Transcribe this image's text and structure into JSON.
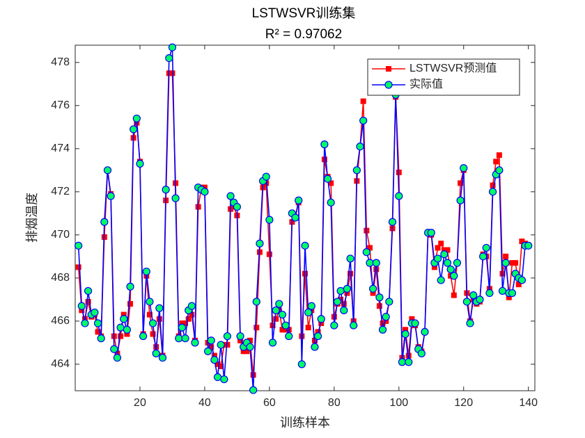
{
  "chart_data": {
    "type": "line",
    "title": "LSTWSVR训练集",
    "subtitle": "R² = 0.97062",
    "xlabel": "训练样本",
    "ylabel": "排烟温度",
    "legend": "upper right",
    "x": [
      1,
      2,
      3,
      4,
      5,
      6,
      7,
      8,
      9,
      10,
      11,
      12,
      13,
      14,
      15,
      16,
      17,
      18,
      19,
      20,
      21,
      22,
      23,
      24,
      25,
      26,
      27,
      28,
      29,
      30,
      31,
      32,
      33,
      34,
      35,
      36,
      37,
      38,
      39,
      40,
      41,
      42,
      43,
      44,
      45,
      46,
      47,
      48,
      49,
      50,
      51,
      52,
      53,
      54,
      55,
      56,
      57,
      58,
      59,
      60,
      61,
      62,
      63,
      64,
      65,
      66,
      67,
      68,
      69,
      70,
      71,
      72,
      73,
      74,
      75,
      76,
      77,
      78,
      79,
      80,
      81,
      82,
      83,
      84,
      85,
      86,
      87,
      88,
      89,
      90,
      91,
      92,
      93,
      94,
      95,
      96,
      97,
      98,
      99,
      100,
      101,
      102,
      103,
      104,
      105,
      106,
      107,
      108,
      109,
      110,
      111,
      112,
      113,
      114,
      115,
      116,
      117,
      118,
      119,
      120,
      121,
      122,
      123,
      124,
      125,
      126,
      127,
      128,
      129,
      130,
      131,
      132,
      133,
      134,
      135,
      136,
      137,
      138,
      139,
      140
    ],
    "series": [
      {
        "name": "LSTWSVR预测值",
        "color": "#ff0000",
        "marker": "square",
        "values": [
          468.5,
          466.5,
          466.1,
          466.9,
          466.2,
          466.3,
          465.5,
          465.3,
          469.9,
          473.0,
          471.9,
          465.3,
          464.5,
          465.3,
          466.3,
          465.4,
          466.8,
          474.5,
          475.2,
          473.4,
          465.4,
          468.1,
          466.3,
          465.4,
          464.8,
          466.1,
          464.4,
          471.6,
          477.5,
          477.5,
          472.4,
          465.3,
          465.9,
          465.9,
          466.1,
          466.3,
          465.1,
          471.3,
          472.2,
          472.2,
          465.0,
          464.8,
          464.4,
          464.0,
          463.9,
          464.9,
          464.9,
          471.2,
          471.3,
          470.9,
          465.1,
          464.6,
          464.6,
          465.1,
          463.5,
          465.7,
          469.2,
          472.2,
          472.4,
          469.1,
          465.8,
          466.1,
          466.5,
          465.6,
          465.6,
          465.6,
          470.6,
          470.8,
          471.5,
          465.3,
          468.2,
          465.7,
          466.5,
          465.1,
          465.5,
          465.9,
          473.5,
          472.7,
          472.4,
          466.2,
          466.8,
          467.0,
          466.8,
          467.3,
          468.2,
          466.0,
          472.5,
          474.1,
          476.2,
          470.2,
          469.4,
          467.3,
          468.4,
          466.7,
          465.9,
          466.0,
          466.9,
          470.3,
          476.4,
          472.9,
          464.3,
          465.6,
          464.4,
          466.1,
          465.8,
          464.8,
          464.6,
          465.5,
          470.1,
          470.0,
          468.5,
          469.4,
          469.6,
          469.3,
          469.3,
          468.1,
          467.2,
          468.7,
          472.4,
          473.0,
          467.3,
          466.0,
          467.0,
          466.8,
          466.9,
          469.1,
          469.0,
          467.5,
          472.3,
          473.4,
          473.7,
          468.2,
          469.0,
          467.1,
          468.7,
          468.7,
          467.7,
          469.7,
          469.6,
          469.5
        ]
      },
      {
        "name": "实际值",
        "color": "#0000ff",
        "marker_color": "#00ff66",
        "marker": "circle",
        "values": [
          469.5,
          466.7,
          465.9,
          467.4,
          466.3,
          466.4,
          465.9,
          465.2,
          470.6,
          473.0,
          471.8,
          464.7,
          464.3,
          465.7,
          466.1,
          465.6,
          467.6,
          474.9,
          475.4,
          473.3,
          465.3,
          468.3,
          466.9,
          465.9,
          464.5,
          466.6,
          464.3,
          472.1,
          478.2,
          478.7,
          471.7,
          465.2,
          465.7,
          465.2,
          466.5,
          466.7,
          465.0,
          472.2,
          472.1,
          472.0,
          464.6,
          465.1,
          464.2,
          463.4,
          464.9,
          463.3,
          465.3,
          471.8,
          471.5,
          471.3,
          465.3,
          464.8,
          465.0,
          464.8,
          462.8,
          466.9,
          469.6,
          472.5,
          472.7,
          470.7,
          465.0,
          466.5,
          466.8,
          466.3,
          465.8,
          465.3,
          471.0,
          470.8,
          471.6,
          464.0,
          469.5,
          466.4,
          466.7,
          464.8,
          465.3,
          466.1,
          474.2,
          472.6,
          471.5,
          465.8,
          466.9,
          467.4,
          466.5,
          467.5,
          468.9,
          465.8,
          473.0,
          474.1,
          475.3,
          469.2,
          468.7,
          467.5,
          468.7,
          467.1,
          465.6,
          466.2,
          466.9,
          470.6,
          476.5,
          471.8,
          464.1,
          465.4,
          464.1,
          465.9,
          465.9,
          464.7,
          464.5,
          465.5,
          470.1,
          470.1,
          468.7,
          468.9,
          467.9,
          469.1,
          468.7,
          468.4,
          468.1,
          468.7,
          471.6,
          473.1,
          466.9,
          465.9,
          467.2,
          466.9,
          467.0,
          469.0,
          469.4,
          467.3,
          472.0,
          472.8,
          473.0,
          467.4,
          468.7,
          467.3,
          467.3,
          468.2,
          468.0,
          467.9,
          469.5,
          469.5
        ]
      }
    ],
    "xlim": [
      0,
      142
    ],
    "xticks": [
      20,
      40,
      60,
      80,
      100,
      120,
      140
    ],
    "ylim": [
      462.77,
      478.8
    ],
    "yticks": [
      464,
      466,
      468,
      470,
      472,
      474,
      476,
      478
    ]
  }
}
